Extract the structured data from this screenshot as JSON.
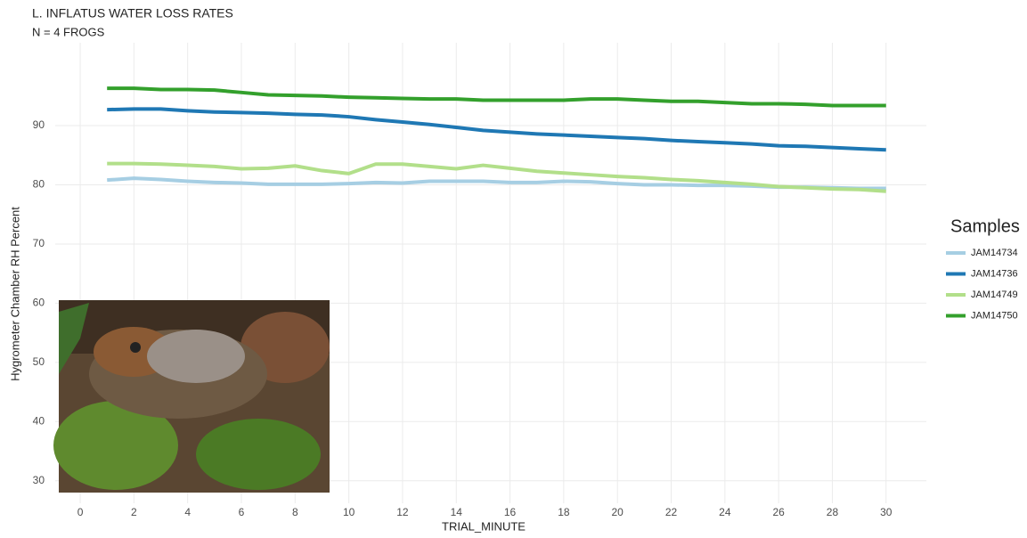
{
  "chart_data": {
    "type": "line",
    "title": "L. INFLATUS WATER LOSS RATES",
    "subtitle": "N = 4 FROGS",
    "x_label": "TRIAL_MINUTE",
    "y_label": "Hygrometer Chamber RH Percent",
    "legend_title": "Samples",
    "legend_position": "right",
    "grid": true,
    "x": [
      1,
      2,
      3,
      4,
      5,
      6,
      7,
      8,
      9,
      10,
      11,
      12,
      13,
      14,
      15,
      16,
      17,
      18,
      19,
      20,
      21,
      22,
      23,
      24,
      25,
      26,
      27,
      28,
      29,
      30
    ],
    "series": [
      {
        "name": "JAM14734",
        "color": "#a6cee3",
        "values": [
          80.8,
          81.1,
          80.9,
          80.6,
          80.4,
          80.3,
          80.1,
          80.1,
          80.1,
          80.2,
          80.4,
          80.3,
          80.6,
          80.6,
          80.6,
          80.4,
          80.4,
          80.6,
          80.5,
          80.2,
          80.0,
          80.0,
          79.9,
          79.9,
          79.8,
          79.6,
          79.6,
          79.5,
          79.4,
          79.4
        ]
      },
      {
        "name": "JAM14736",
        "color": "#1f78b4",
        "values": [
          92.7,
          92.8,
          92.8,
          92.5,
          92.3,
          92.2,
          92.1,
          91.9,
          91.8,
          91.5,
          91.0,
          90.6,
          90.2,
          89.7,
          89.2,
          88.9,
          88.6,
          88.4,
          88.2,
          88.0,
          87.8,
          87.5,
          87.3,
          87.1,
          86.9,
          86.6,
          86.5,
          86.3,
          86.1,
          85.9
        ]
      },
      {
        "name": "JAM14749",
        "color": "#b2df8a",
        "values": [
          83.6,
          83.6,
          83.5,
          83.3,
          83.1,
          82.7,
          82.8,
          83.2,
          82.4,
          81.9,
          83.5,
          83.5,
          83.1,
          82.7,
          83.3,
          82.8,
          82.3,
          82.0,
          81.7,
          81.4,
          81.2,
          80.9,
          80.7,
          80.4,
          80.1,
          79.7,
          79.5,
          79.3,
          79.2,
          78.9
        ]
      },
      {
        "name": "JAM14750",
        "color": "#33a02c",
        "values": [
          96.3,
          96.3,
          96.1,
          96.1,
          96.0,
          95.6,
          95.2,
          95.1,
          95.0,
          94.8,
          94.7,
          94.6,
          94.5,
          94.5,
          94.3,
          94.3,
          94.3,
          94.3,
          94.5,
          94.5,
          94.3,
          94.1,
          94.1,
          93.9,
          93.7,
          93.7,
          93.6,
          93.4,
          93.4,
          93.4
        ]
      }
    ],
    "xlim": [
      -0.93,
      31.5
    ],
    "ylim": [
      26.2,
      104
    ],
    "xticks": [
      0,
      2,
      4,
      6,
      8,
      10,
      12,
      14,
      16,
      18,
      20,
      22,
      24,
      26,
      28,
      30
    ],
    "yticks": [
      30,
      40,
      50,
      60,
      70,
      80,
      90
    ]
  }
}
